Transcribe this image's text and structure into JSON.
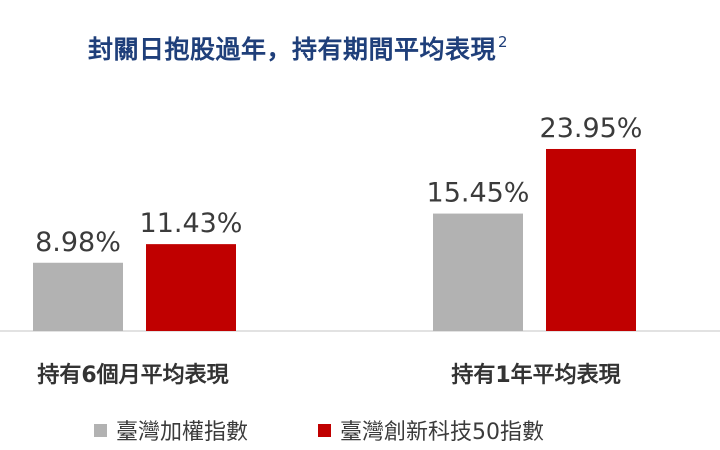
{
  "title": "封關日抱股過年，持有期間平均表現",
  "title_sup": "2",
  "chart_data": {
    "type": "bar",
    "title": "封關日抱股過年，持有期間平均表現",
    "categories": [
      "持有6個月平均表現",
      "持有1年平均表現"
    ],
    "series": [
      {
        "name": "臺灣加權指數",
        "color": "#b2b2b2",
        "values": [
          8.98,
          15.45
        ],
        "labels": [
          "8.98%",
          "15.45%"
        ]
      },
      {
        "name": "臺灣創新科技50指數",
        "color": "#c00000",
        "values": [
          11.43,
          23.95
        ],
        "labels": [
          "11.43%",
          "23.95%"
        ]
      }
    ],
    "ylim": [
      0,
      30
    ],
    "grid": false,
    "legend_position": "bottom"
  }
}
